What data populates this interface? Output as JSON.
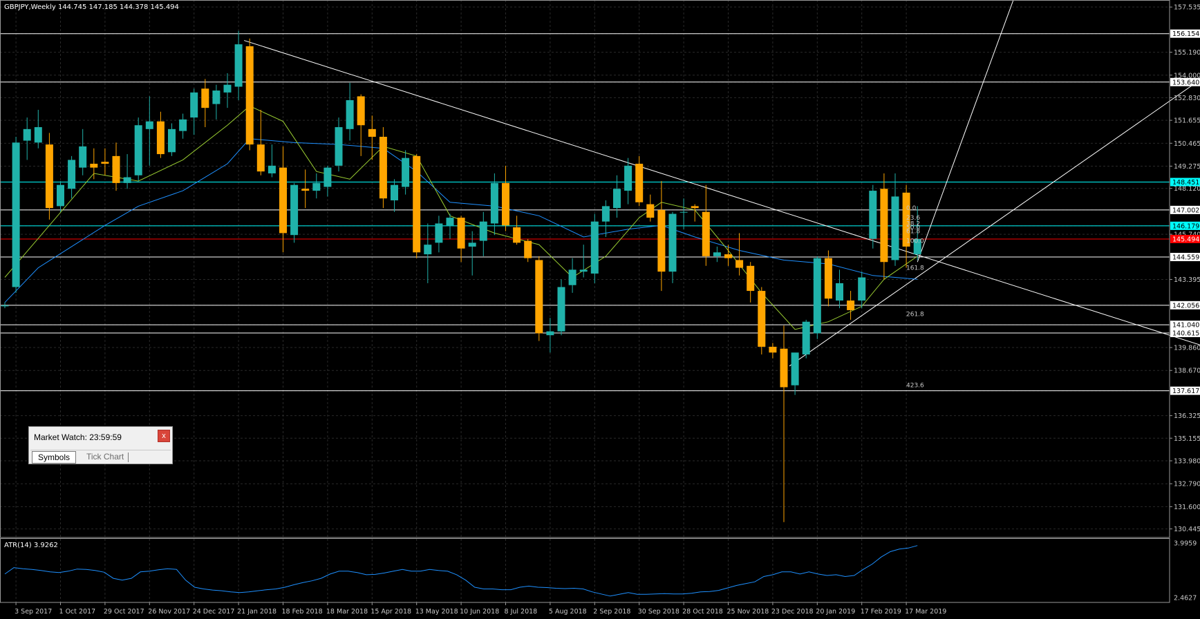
{
  "chart_header": "GBPJPY,Weekly  144.745 147.185 144.378 145.494",
  "atr_label": "ATR(14) 3.9262",
  "colors": {
    "background": "#000000",
    "bull": "#20b2aa",
    "bear": "#ffa500",
    "ma_fast": "#9acd32",
    "ma_slow": "#1e90ff",
    "grid": "#2a2a2a",
    "levels": "#ffffff",
    "price_line": "#ff0000",
    "teal_line": "#00ffff",
    "axis_text": "#c8c8c8"
  },
  "market_watch": {
    "title": "Market Watch: 23:59:59",
    "close_label": "x",
    "tabs": [
      "Symbols",
      "Tick Chart"
    ]
  },
  "chart_data": {
    "type": "candlestick",
    "title": "GBPJPY,Weekly",
    "ylim": [
      130.0,
      157.9
    ],
    "y_ticks": [
      "157.535",
      "156.154",
      "155.190",
      "154.000",
      "153.640",
      "152.830",
      "151.655",
      "150.465",
      "149.275",
      "148.451",
      "148.120",
      "147.002",
      "146.179",
      "145.740",
      "145.494",
      "144.559",
      "143.395",
      "142.056",
      "141.040",
      "140.615",
      "139.860",
      "138.670",
      "137.617",
      "136.325",
      "135.155",
      "133.980",
      "132.790",
      "131.600",
      "130.445"
    ],
    "highlight_labels": [
      {
        "text": "156.154",
        "color": "white"
      },
      {
        "text": "153.640",
        "color": "white"
      },
      {
        "text": "148.451",
        "color": "teal"
      },
      {
        "text": "147.002",
        "color": "white"
      },
      {
        "text": "146.179",
        "color": "teal"
      },
      {
        "text": "145.494",
        "color": "red"
      },
      {
        "text": "144.559",
        "color": "white"
      },
      {
        "text": "142.056",
        "color": "white"
      },
      {
        "text": "141.040",
        "color": "white"
      },
      {
        "text": "140.615",
        "color": "white"
      },
      {
        "text": "137.617",
        "color": "white"
      }
    ],
    "x_labels": [
      {
        "i": 1,
        "text": "3 Sep 2017"
      },
      {
        "i": 5,
        "text": "1 Oct 2017"
      },
      {
        "i": 9,
        "text": "29 Oct 2017"
      },
      {
        "i": 13,
        "text": "26 Nov 2017"
      },
      {
        "i": 17,
        "text": "24 Dec 2017"
      },
      {
        "i": 21,
        "text": "21 Jan 2018"
      },
      {
        "i": 25,
        "text": "18 Feb 2018"
      },
      {
        "i": 29,
        "text": "18 Mar 2018"
      },
      {
        "i": 33,
        "text": "15 Apr 2018"
      },
      {
        "i": 37,
        "text": "13 May 2018"
      },
      {
        "i": 41,
        "text": "10 Jun 2018"
      },
      {
        "i": 45,
        "text": "8 Jul 2018"
      },
      {
        "i": 49,
        "text": "5 Aug 2018"
      },
      {
        "i": 53,
        "text": "2 Sep 2018"
      },
      {
        "i": 57,
        "text": "30 Sep 2018"
      },
      {
        "i": 61,
        "text": "28 Oct 2018"
      },
      {
        "i": 65,
        "text": "25 Nov 2018"
      },
      {
        "i": 69,
        "text": "23 Dec 2018"
      },
      {
        "i": 73,
        "text": "20 Jan 2019"
      },
      {
        "i": 77,
        "text": "17 Feb 2019"
      },
      {
        "i": 81,
        "text": "17 Mar 2019"
      }
    ],
    "candles": [
      [
        142.0,
        142.2,
        141.9,
        142.05
      ],
      [
        143.0,
        150.8,
        142.7,
        150.5
      ],
      [
        150.6,
        151.8,
        149.6,
        151.2
      ],
      [
        150.5,
        152.2,
        150.2,
        151.3
      ],
      [
        150.4,
        151.0,
        146.5,
        147.1
      ],
      [
        147.2,
        148.5,
        146.9,
        148.3
      ],
      [
        148.1,
        149.8,
        147.6,
        149.6
      ],
      [
        149.2,
        151.2,
        148.8,
        150.3
      ],
      [
        149.4,
        150.2,
        148.6,
        149.2
      ],
      [
        149.5,
        150.2,
        148.8,
        149.4
      ],
      [
        149.8,
        150.5,
        148.0,
        148.4
      ],
      [
        148.4,
        149.9,
        148.1,
        148.7
      ],
      [
        148.8,
        151.8,
        148.5,
        151.4
      ],
      [
        151.2,
        152.9,
        149.3,
        151.6
      ],
      [
        151.6,
        152.1,
        149.7,
        149.9
      ],
      [
        150.0,
        151.5,
        149.8,
        151.2
      ],
      [
        151.1,
        152.0,
        150.7,
        151.7
      ],
      [
        151.8,
        153.3,
        150.9,
        153.1
      ],
      [
        153.3,
        153.8,
        151.3,
        152.3
      ],
      [
        152.5,
        153.5,
        151.7,
        153.2
      ],
      [
        153.1,
        154.1,
        152.3,
        153.5
      ],
      [
        153.4,
        156.3,
        152.7,
        155.6
      ],
      [
        155.5,
        155.9,
        150.1,
        150.4
      ],
      [
        150.4,
        152.2,
        148.8,
        149.0
      ],
      [
        148.9,
        150.4,
        148.7,
        149.3
      ],
      [
        149.2,
        150.3,
        144.8,
        145.8
      ],
      [
        145.7,
        148.4,
        145.3,
        148.3
      ],
      [
        148.1,
        149.1,
        147.1,
        148.0
      ],
      [
        148.0,
        148.9,
        147.6,
        148.4
      ],
      [
        148.2,
        149.3,
        147.7,
        149.2
      ],
      [
        149.3,
        151.8,
        149.0,
        151.3
      ],
      [
        151.2,
        153.6,
        150.6,
        152.7
      ],
      [
        152.9,
        153.0,
        149.8,
        151.4
      ],
      [
        151.2,
        151.9,
        149.6,
        150.8
      ],
      [
        150.8,
        151.3,
        147.1,
        147.6
      ],
      [
        147.5,
        148.6,
        146.9,
        148.3
      ],
      [
        148.2,
        150.1,
        147.8,
        149.7
      ],
      [
        149.8,
        149.9,
        144.5,
        144.8
      ],
      [
        144.7,
        146.3,
        143.2,
        145.2
      ],
      [
        145.3,
        146.7,
        144.8,
        146.3
      ],
      [
        146.2,
        146.8,
        145.5,
        146.6
      ],
      [
        146.6,
        146.7,
        144.3,
        145.0
      ],
      [
        145.1,
        145.9,
        143.6,
        145.3
      ],
      [
        145.4,
        146.9,
        144.6,
        146.4
      ],
      [
        146.3,
        148.9,
        145.7,
        148.4
      ],
      [
        148.4,
        149.3,
        145.9,
        146.2
      ],
      [
        146.1,
        146.7,
        145.2,
        145.3
      ],
      [
        145.4,
        145.5,
        144.3,
        144.5
      ],
      [
        144.4,
        144.6,
        140.2,
        140.6
      ],
      [
        140.5,
        141.4,
        139.6,
        140.7
      ],
      [
        140.7,
        143.4,
        140.5,
        143.0
      ],
      [
        143.1,
        144.5,
        142.7,
        143.9
      ],
      [
        143.8,
        145.2,
        143.5,
        143.9
      ],
      [
        143.7,
        146.8,
        143.2,
        146.4
      ],
      [
        146.4,
        147.5,
        145.6,
        147.2
      ],
      [
        147.1,
        148.8,
        146.6,
        148.1
      ],
      [
        148.0,
        149.7,
        147.3,
        149.3
      ],
      [
        149.4,
        149.8,
        147.2,
        147.4
      ],
      [
        147.3,
        147.8,
        146.4,
        146.6
      ],
      [
        147.0,
        148.5,
        142.8,
        143.8
      ],
      [
        143.8,
        146.9,
        143.2,
        146.8
      ],
      [
        146.9,
        147.6,
        146.0,
        146.9
      ],
      [
        147.2,
        147.3,
        146.4,
        147.1
      ],
      [
        146.9,
        148.3,
        144.1,
        144.6
      ],
      [
        144.6,
        145.1,
        144.3,
        144.8
      ],
      [
        144.7,
        145.2,
        144.1,
        144.5
      ],
      [
        144.4,
        145.8,
        143.6,
        144.0
      ],
      [
        144.1,
        144.3,
        142.2,
        142.8
      ],
      [
        142.8,
        143.0,
        139.5,
        139.9
      ],
      [
        139.9,
        140.1,
        139.3,
        139.6
      ],
      [
        139.8,
        141.0,
        130.8,
        137.8
      ],
      [
        137.9,
        139.4,
        137.4,
        139.6
      ],
      [
        139.5,
        141.3,
        139.3,
        141.2
      ],
      [
        140.6,
        144.6,
        140.3,
        144.5
      ],
      [
        144.5,
        144.9,
        142.0,
        142.4
      ],
      [
        142.3,
        143.9,
        141.9,
        143.2
      ],
      [
        142.3,
        142.8,
        141.3,
        141.8
      ],
      [
        142.3,
        143.8,
        141.9,
        143.5
      ],
      [
        145.5,
        148.3,
        145.0,
        148.0
      ],
      [
        148.1,
        148.9,
        143.4,
        144.3
      ],
      [
        144.4,
        148.9,
        144.1,
        147.7
      ],
      [
        147.9,
        148.3,
        144.0,
        145.1
      ],
      [
        144.7,
        147.2,
        144.4,
        145.5
      ]
    ],
    "ma_fast": [
      {
        "i": 0,
        "v": 143.5
      },
      {
        "i": 4,
        "v": 146.2
      },
      {
        "i": 8,
        "v": 148.9
      },
      {
        "i": 12,
        "v": 148.5
      },
      {
        "i": 16,
        "v": 149.6
      },
      {
        "i": 20,
        "v": 151.4
      },
      {
        "i": 22,
        "v": 152.4
      },
      {
        "i": 25,
        "v": 151.6
      },
      {
        "i": 28,
        "v": 149.0
      },
      {
        "i": 31,
        "v": 148.6
      },
      {
        "i": 34,
        "v": 150.3
      },
      {
        "i": 37,
        "v": 149.8
      },
      {
        "i": 40,
        "v": 146.7
      },
      {
        "i": 44,
        "v": 145.8
      },
      {
        "i": 48,
        "v": 145.2
      },
      {
        "i": 51,
        "v": 143.5
      },
      {
        "i": 54,
        "v": 144.6
      },
      {
        "i": 57,
        "v": 146.6
      },
      {
        "i": 59,
        "v": 147.4
      },
      {
        "i": 62,
        "v": 147.0
      },
      {
        "i": 65,
        "v": 144.9
      },
      {
        "i": 68,
        "v": 142.7
      },
      {
        "i": 71,
        "v": 140.8
      },
      {
        "i": 74,
        "v": 141.2
      },
      {
        "i": 77,
        "v": 142.0
      },
      {
        "i": 79,
        "v": 143.4
      },
      {
        "i": 82,
        "v": 144.6
      }
    ],
    "ma_slow": [
      {
        "i": 0,
        "v": 142.2
      },
      {
        "i": 3,
        "v": 144.0
      },
      {
        "i": 6,
        "v": 145.1
      },
      {
        "i": 9,
        "v": 146.2
      },
      {
        "i": 12,
        "v": 147.2
      },
      {
        "i": 16,
        "v": 148.0
      },
      {
        "i": 20,
        "v": 149.4
      },
      {
        "i": 22,
        "v": 150.7
      },
      {
        "i": 26,
        "v": 150.5
      },
      {
        "i": 30,
        "v": 150.4
      },
      {
        "i": 34,
        "v": 150.2
      },
      {
        "i": 37,
        "v": 149.0
      },
      {
        "i": 40,
        "v": 147.4
      },
      {
        "i": 44,
        "v": 147.2
      },
      {
        "i": 48,
        "v": 146.7
      },
      {
        "i": 52,
        "v": 145.6
      },
      {
        "i": 56,
        "v": 146.0
      },
      {
        "i": 59,
        "v": 146.2
      },
      {
        "i": 62,
        "v": 145.6
      },
      {
        "i": 66,
        "v": 144.9
      },
      {
        "i": 70,
        "v": 144.4
      },
      {
        "i": 74,
        "v": 144.2
      },
      {
        "i": 78,
        "v": 143.6
      },
      {
        "i": 82,
        "v": 143.4
      }
    ],
    "horizontal_levels": [
      {
        "price": 156.154,
        "color": "white"
      },
      {
        "price": 153.64,
        "color": "white"
      },
      {
        "price": 148.451,
        "color": "teal"
      },
      {
        "price": 147.002,
        "color": "white"
      },
      {
        "price": 146.179,
        "color": "teal"
      },
      {
        "price": 145.494,
        "color": "red"
      },
      {
        "price": 144.559,
        "color": "white"
      },
      {
        "price": 142.056,
        "color": "white"
      },
      {
        "price": 141.04,
        "color": "white"
      },
      {
        "price": 140.615,
        "color": "white"
      },
      {
        "price": 137.617,
        "color": "white"
      }
    ],
    "trendlines": [
      {
        "from": {
          "i": 21.5,
          "p": 155.8
        },
        "to": {
          "i": 109,
          "p": 139.7
        }
      },
      {
        "from": {
          "i": 70.5,
          "p": 138.9
        },
        "to": {
          "i": 109,
          "p": 154.4
        }
      },
      {
        "from": {
          "i": 82,
          "p": 144.3
        },
        "to": {
          "i": 91,
          "p": 158.5
        }
      }
    ],
    "fibo": {
      "levels": [
        "0.0",
        "23.6",
        "38.2",
        "50.0",
        "61.8",
        "100.0",
        "161.8",
        "261.8",
        "423.6"
      ],
      "prices": [
        147.1,
        146.6,
        146.3,
        146.1,
        145.9,
        145.4,
        144.0,
        141.6,
        137.9
      ]
    },
    "atr": {
      "label": "ATR(14) 3.9262",
      "ylim": [
        2.4,
        4.05
      ],
      "ticks": [
        "3.9959",
        "2.4627"
      ],
      "values": [
        3.12,
        3.3,
        3.27,
        3.25,
        3.22,
        3.18,
        3.16,
        3.2,
        3.26,
        3.25,
        3.22,
        3.17,
        3.0,
        2.95,
        3.0,
        3.18,
        3.2,
        3.24,
        3.27,
        3.25,
        2.95,
        2.75,
        2.7,
        2.67,
        2.65,
        2.62,
        2.6,
        2.62,
        2.65,
        2.68,
        2.7,
        2.75,
        2.82,
        2.88,
        2.93,
        3.0,
        3.12,
        3.2,
        3.2,
        3.16,
        3.1,
        3.11,
        3.15,
        3.2,
        3.25,
        3.2,
        3.2,
        3.25,
        3.22,
        3.2,
        3.1,
        2.95,
        2.75,
        2.7,
        2.7,
        2.68,
        2.68,
        2.75,
        2.78,
        2.75,
        2.74,
        2.72,
        2.71,
        2.72,
        2.7,
        2.62,
        2.56,
        2.5,
        2.55,
        2.6,
        2.55,
        2.55,
        2.56,
        2.57,
        2.56,
        2.56,
        2.58,
        2.62,
        2.63,
        2.66,
        2.73,
        2.8,
        2.85,
        2.9,
        3.05,
        3.1,
        3.18,
        3.18,
        3.12,
        3.18,
        3.12,
        3.08,
        3.1,
        3.05,
        3.08,
        3.25,
        3.4,
        3.6,
        3.75,
        3.82,
        3.85,
        3.92
      ]
    }
  }
}
